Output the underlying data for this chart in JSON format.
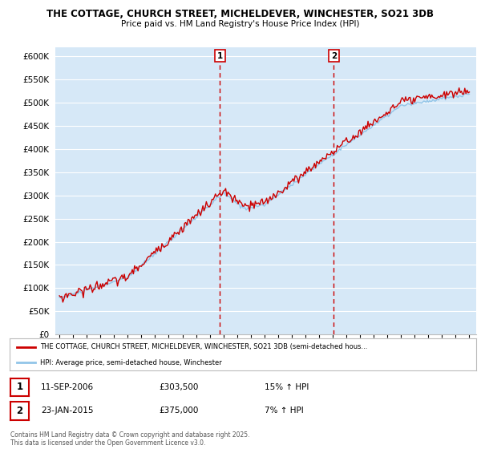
{
  "title_line1": "THE COTTAGE, CHURCH STREET, MICHELDEVER, WINCHESTER, SO21 3DB",
  "title_line2": "Price paid vs. HM Land Registry's House Price Index (HPI)",
  "ylim": [
    0,
    620000
  ],
  "yticks": [
    0,
    50000,
    100000,
    150000,
    200000,
    250000,
    300000,
    350000,
    400000,
    450000,
    500000,
    550000,
    600000
  ],
  "ytick_labels": [
    "£0",
    "£50K",
    "£100K",
    "£150K",
    "£200K",
    "£250K",
    "£300K",
    "£350K",
    "£400K",
    "£450K",
    "£500K",
    "£550K",
    "£600K"
  ],
  "background_color": "#ffffff",
  "plot_bg_color": "#d6e8f7",
  "grid_color": "#ffffff",
  "line1_color": "#cc0000",
  "line2_color": "#92c5e8",
  "vline_color": "#cc0000",
  "legend_line1": "THE COTTAGE, CHURCH STREET, MICHELDEVER, WINCHESTER, SO21 3DB (semi-detached hous...",
  "legend_line2": "HPI: Average price, semi-detached house, Winchester",
  "annotation1_date": "11-SEP-2006",
  "annotation1_price": "£303,500",
  "annotation1_hpi": "15% ↑ HPI",
  "annotation2_date": "23-JAN-2015",
  "annotation2_price": "£375,000",
  "annotation2_hpi": "7% ↑ HPI",
  "footer": "Contains HM Land Registry data © Crown copyright and database right 2025.\nThis data is licensed under the Open Government Licence v3.0.",
  "x_start_year": 1995,
  "x_end_year": 2025
}
